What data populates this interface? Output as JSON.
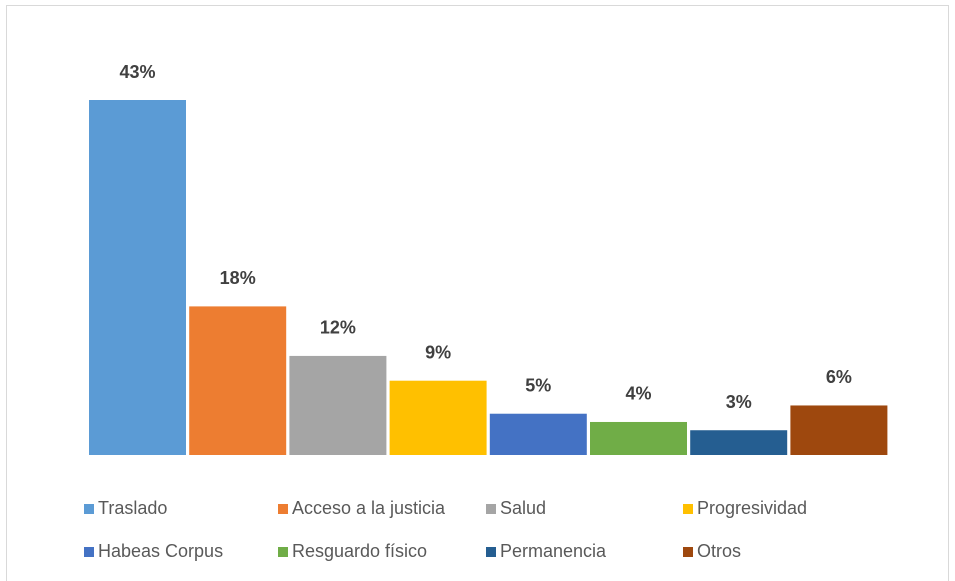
{
  "chart_data": {
    "type": "bar",
    "legend": "bottom",
    "series": [
      {
        "name": "Traslado",
        "color": "#5b9bd5",
        "values": [
          43
        ],
        "value_labels": [
          "43%"
        ]
      },
      {
        "name": "Acceso a la justicia",
        "color": "#ed7d31",
        "values": [
          18
        ],
        "value_labels": [
          "18%"
        ]
      },
      {
        "name": "Salud",
        "color": "#a5a5a5",
        "values": [
          12
        ],
        "value_labels": [
          "12%"
        ]
      },
      {
        "name": "Progresividad",
        "color": "#ffc000",
        "values": [
          9
        ],
        "value_labels": [
          "9%"
        ]
      },
      {
        "name": "Habeas Corpus",
        "color": "#4472c4",
        "values": [
          5
        ],
        "value_labels": [
          "5%"
        ]
      },
      {
        "name": "Resguardo físico",
        "color": "#70ad47",
        "values": [
          4
        ],
        "value_labels": [
          "4%"
        ]
      },
      {
        "name": "Permanencia",
        "color": "#255e91",
        "values": [
          3
        ],
        "value_labels": [
          "3%"
        ]
      },
      {
        "name": "Otros",
        "color": "#9e480e",
        "values": [
          6
        ],
        "value_labels": [
          "6%"
        ]
      }
    ]
  }
}
